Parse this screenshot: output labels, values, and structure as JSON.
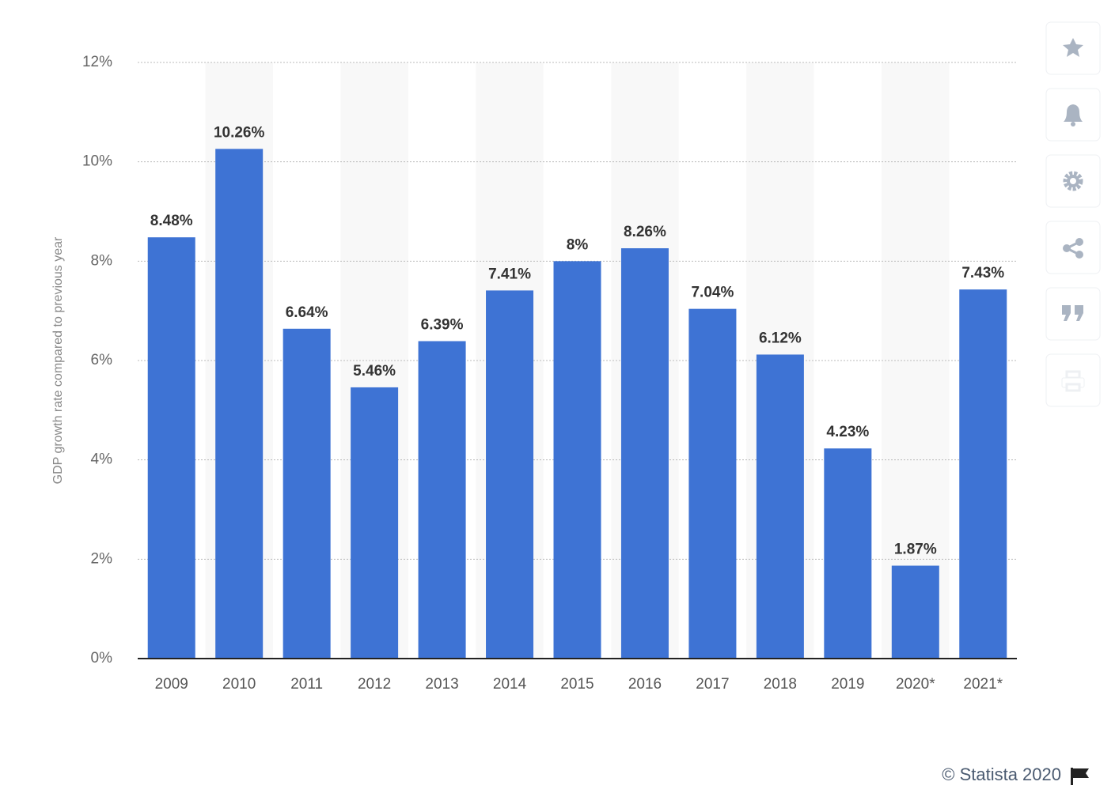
{
  "chart_data": {
    "type": "bar",
    "y_axis_label": "GDP growth rate compared to previous year",
    "categories": [
      "2009",
      "2010",
      "2011",
      "2012",
      "2013",
      "2014",
      "2015",
      "2016",
      "2017",
      "2018",
      "2019",
      "2020*",
      "2021*"
    ],
    "values": [
      8.48,
      10.26,
      6.64,
      5.46,
      6.39,
      7.41,
      8,
      8.26,
      7.04,
      6.12,
      4.23,
      1.87,
      7.43
    ],
    "value_labels": [
      "8.48%",
      "10.26%",
      "6.64%",
      "5.46%",
      "6.39%",
      "7.41%",
      "8%",
      "8.26%",
      "7.04%",
      "6.12%",
      "4.23%",
      "1.87%",
      "7.43%"
    ],
    "color": "#3e73d4",
    "ylim": [
      0,
      12
    ],
    "yticks": [
      {
        "value": 0,
        "label": "0%"
      },
      {
        "value": 2,
        "label": "2%"
      },
      {
        "value": 4,
        "label": "4%"
      },
      {
        "value": 6,
        "label": "6%"
      },
      {
        "value": 8,
        "label": "8%"
      },
      {
        "value": 10,
        "label": "10%"
      },
      {
        "value": 12,
        "label": "12%"
      }
    ],
    "grid": true,
    "credit": "© Statista 2020"
  }
}
